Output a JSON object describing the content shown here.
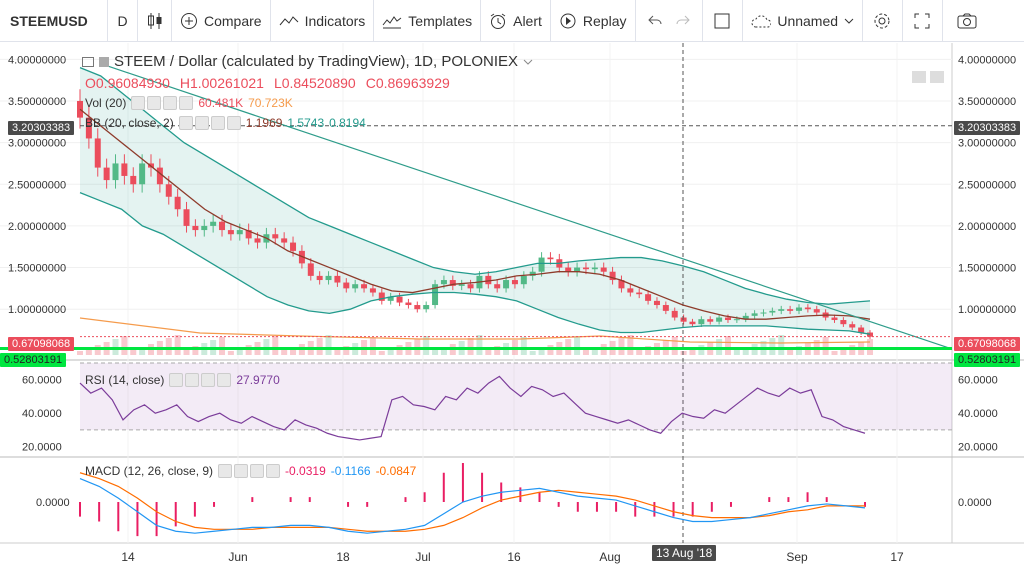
{
  "toolbar": {
    "symbol": "STEEMUSD",
    "interval": "D",
    "compare": "Compare",
    "indicators": "Indicators",
    "templates": "Templates",
    "alert": "Alert",
    "replay": "Replay",
    "layout": "Unnamed"
  },
  "legend": {
    "title": "STEEM / Dollar (calculated by TradingView), 1D, POLONIEX",
    "o": "O0.96084930",
    "h": "H1.00261021",
    "l": "L0.84520890",
    "c": "C0.86963929",
    "vol_label": "Vol (20)",
    "vol_v1": "60.481K",
    "vol_v2": "70.723K",
    "bb_label": "BB (20, close, 2)",
    "bb_v1": "1.1969",
    "bb_v2": "1.5743",
    "bb_v3": "0.8194"
  },
  "rsi": {
    "label": "RSI (14, close)",
    "value": "27.9770"
  },
  "macd": {
    "label": "MACD (12, 26, close, 9)",
    "v1": "-0.0319",
    "v2": "-0.1166",
    "v3": "-0.0847"
  },
  "price_axis": {
    "labels": [
      "4.00000000",
      "3.50000000",
      "3.00000000",
      "2.50000000",
      "2.00000000",
      "1.50000000",
      "1.00000000"
    ],
    "crosshair": "3.20303383",
    "last": "0.67098068",
    "support": "0.52803191"
  },
  "rsi_axis": {
    "labels": [
      "60.0000",
      "40.0000",
      "20.0000"
    ]
  },
  "macd_axis": {
    "labels": [
      "0.0000"
    ]
  },
  "time_axis": {
    "labels": [
      "14",
      "Jun",
      "18",
      "Jul",
      "16",
      "Aug",
      "Sep",
      "17"
    ],
    "crosshair": "13 Aug '18"
  },
  "colors": {
    "up": "#53b987",
    "down": "#eb4d5c",
    "bb_mid": "#8e3b2b",
    "bb_band": "#239b8d",
    "vol_ma": "#f59b4c",
    "rsi": "#7b3c9a",
    "macd": "#2196f3",
    "signal": "#ff6d00",
    "hist": "#e91e63",
    "trend": "#2e9c8a",
    "support": "#00e640"
  },
  "chart_data": {
    "type": "candlestick",
    "close_series": [
      3.3,
      3.05,
      2.7,
      2.55,
      2.75,
      2.6,
      2.5,
      2.75,
      2.7,
      2.5,
      2.35,
      2.2,
      2.0,
      1.95,
      2.0,
      2.05,
      1.95,
      1.9,
      1.95,
      1.85,
      1.8,
      1.9,
      1.85,
      1.8,
      1.7,
      1.55,
      1.4,
      1.35,
      1.4,
      1.32,
      1.25,
      1.3,
      1.25,
      1.2,
      1.1,
      1.15,
      1.08,
      1.05,
      1.0,
      1.05,
      1.3,
      1.35,
      1.28,
      1.3,
      1.25,
      1.4,
      1.3,
      1.25,
      1.35,
      1.3,
      1.4,
      1.45,
      1.62,
      1.6,
      1.5,
      1.45,
      1.5,
      1.48,
      1.5,
      1.45,
      1.35,
      1.25,
      1.2,
      1.18,
      1.1,
      1.05,
      0.98,
      0.9,
      0.85,
      0.82,
      0.88,
      0.85,
      0.9,
      0.87,
      0.88,
      0.92,
      0.95,
      0.96,
      0.98,
      1.0,
      0.98,
      1.02,
      1.0,
      0.96,
      0.9,
      0.87,
      0.82,
      0.78,
      0.72,
      0.67
    ],
    "bb_upper": [
      3.9,
      3.8,
      3.6,
      3.4,
      3.2,
      3.0,
      2.85,
      2.7,
      2.55,
      2.4,
      2.25,
      2.1,
      2.0,
      1.9,
      1.8,
      1.7,
      1.6,
      1.5,
      1.45,
      1.42,
      1.45,
      1.5,
      1.55,
      1.55,
      1.58,
      1.6,
      1.62,
      1.62,
      1.58,
      1.52,
      1.45,
      1.35,
      1.25,
      1.18,
      1.12,
      1.08,
      1.06,
      1.08,
      1.1
    ],
    "bb_mid": [
      3.4,
      3.2,
      3.0,
      2.8,
      2.6,
      2.4,
      2.2,
      2.05,
      1.95,
      1.85,
      1.7,
      1.6,
      1.5,
      1.4,
      1.3,
      1.22,
      1.2,
      1.25,
      1.3,
      1.32,
      1.35,
      1.4,
      1.42,
      1.45,
      1.45,
      1.42,
      1.35,
      1.25,
      1.15,
      1.05,
      0.98,
      0.92,
      0.88,
      0.88,
      0.9,
      0.92,
      0.93,
      0.92,
      0.88
    ],
    "bb_lower": [
      2.4,
      2.3,
      2.2,
      2.0,
      1.9,
      1.75,
      1.6,
      1.45,
      1.3,
      1.15,
      1.05,
      0.98,
      0.95,
      1.0,
      1.1,
      1.15,
      1.18,
      1.2,
      1.2,
      1.18,
      1.15,
      1.1,
      1.0,
      0.9,
      0.82,
      0.75,
      0.72,
      0.72,
      0.75,
      0.78,
      0.8,
      0.8,
      0.8,
      0.8,
      0.78,
      0.76,
      0.75,
      0.74,
      0.7
    ],
    "rsi": [
      58,
      52,
      55,
      48,
      36,
      42,
      45,
      40,
      42,
      45,
      38,
      35,
      38,
      40,
      36,
      34,
      38,
      35,
      32,
      30,
      36,
      33,
      31,
      28,
      26,
      25,
      24,
      25,
      26,
      48,
      50,
      45,
      44,
      42,
      50,
      48,
      55,
      52,
      58,
      62,
      55,
      50,
      56,
      54,
      50,
      52,
      46,
      40,
      38,
      36,
      34,
      36,
      33,
      30,
      28,
      35,
      40,
      38,
      37,
      42,
      40,
      45,
      50,
      55,
      52,
      50,
      55,
      52,
      54,
      38,
      36,
      32,
      30,
      28
    ],
    "macd": [
      0.12,
      0.08,
      0.02,
      -0.05,
      -0.12,
      -0.15,
      -0.16,
      -0.15,
      -0.14,
      -0.13,
      -0.13,
      -0.12,
      -0.12,
      -0.13,
      -0.15,
      -0.16,
      -0.15,
      -0.14,
      -0.12,
      -0.06,
      0.0,
      0.03,
      0.05,
      0.06,
      0.07,
      0.05,
      0.03,
      0.02,
      0.01,
      -0.02,
      -0.05,
      -0.08,
      -0.1,
      -0.1,
      -0.09,
      -0.08,
      -0.06,
      -0.04,
      -0.02,
      -0.01,
      -0.02,
      -0.03
    ],
    "signal": [
      0.15,
      0.12,
      0.08,
      0.02,
      -0.05,
      -0.1,
      -0.13,
      -0.14,
      -0.14,
      -0.14,
      -0.13,
      -0.13,
      -0.13,
      -0.13,
      -0.14,
      -0.15,
      -0.15,
      -0.15,
      -0.14,
      -0.12,
      -0.08,
      -0.03,
      0.01,
      0.03,
      0.05,
      0.06,
      0.05,
      0.04,
      0.03,
      0.01,
      -0.02,
      -0.05,
      -0.07,
      -0.08,
      -0.08,
      -0.08,
      -0.07,
      -0.05,
      -0.04,
      -0.02,
      -0.02,
      -0.02
    ],
    "ylim": [
      0.45,
      4.1
    ]
  }
}
